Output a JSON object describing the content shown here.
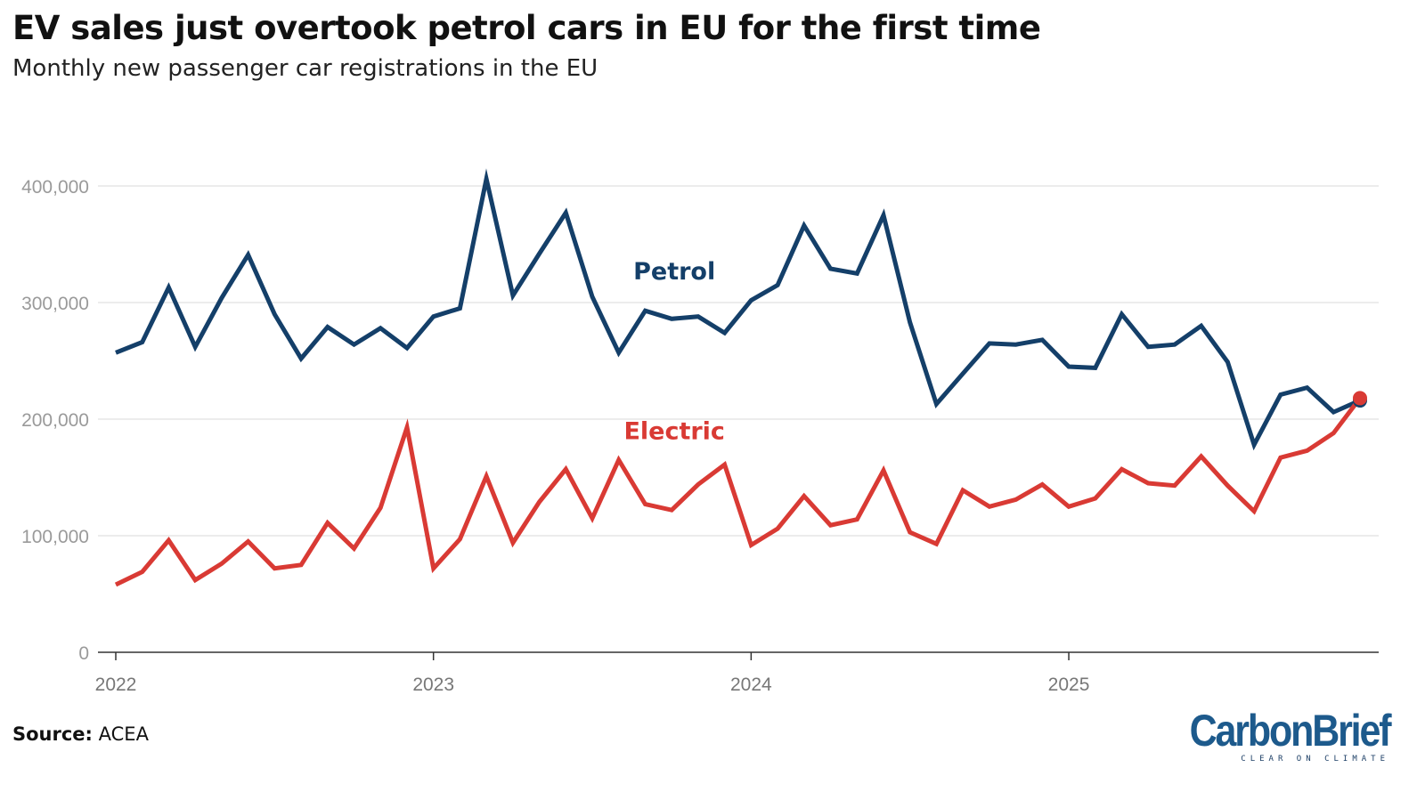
{
  "title": "EV sales just overtook petrol cars in EU for the first time",
  "subtitle": "Monthly new passenger car registrations in the EU",
  "source_label": "Source:",
  "source_value": "ACEA",
  "logo": {
    "main": "CarbonBrief",
    "tagline": "CLEAR ON CLIMATE"
  },
  "colors": {
    "petrol": "#143f69",
    "electric": "#d93a34",
    "grid": "#e6e6e6",
    "axis_text": "#9a9a9a",
    "year_text": "#777777"
  },
  "chart_data": {
    "type": "line",
    "title": "EV sales just overtook petrol cars in EU for the first time",
    "subtitle": "Monthly new passenger car registrations in the EU",
    "xlabel": "",
    "ylabel": "",
    "x_range": [
      "2022-01",
      "2025-12"
    ],
    "ylim": [
      0,
      400000
    ],
    "y_ticks": [
      0,
      100000,
      200000,
      300000,
      400000
    ],
    "y_tick_labels": [
      "0",
      "100,000",
      "200,000",
      "300,000",
      "400,000"
    ],
    "x_ticks": [
      "2022-01",
      "2023-01",
      "2024-01",
      "2025-01"
    ],
    "x_tick_labels": [
      "2022",
      "2023",
      "2024",
      "2025"
    ],
    "grid": true,
    "x": [
      "2022-01",
      "2022-02",
      "2022-03",
      "2022-04",
      "2022-05",
      "2022-06",
      "2022-07",
      "2022-08",
      "2022-09",
      "2022-10",
      "2022-11",
      "2022-12",
      "2023-01",
      "2023-02",
      "2023-03",
      "2023-04",
      "2023-05",
      "2023-06",
      "2023-07",
      "2023-08",
      "2023-09",
      "2023-10",
      "2023-11",
      "2023-12",
      "2024-01",
      "2024-02",
      "2024-03",
      "2024-04",
      "2024-05",
      "2024-06",
      "2024-07",
      "2024-08",
      "2024-09",
      "2024-10",
      "2024-11",
      "2024-12",
      "2025-01",
      "2025-02",
      "2025-03",
      "2025-04",
      "2025-05",
      "2025-06",
      "2025-07",
      "2025-08",
      "2025-09",
      "2025-10",
      "2025-11",
      "2025-12"
    ],
    "series": [
      {
        "name": "Petrol",
        "color": "#143f69",
        "values": [
          257000,
          266000,
          313000,
          262000,
          304000,
          341000,
          290000,
          252000,
          279000,
          264000,
          278000,
          261000,
          288000,
          295000,
          406000,
          306000,
          342000,
          377000,
          305000,
          257000,
          293000,
          286000,
          288000,
          274000,
          302000,
          315000,
          366000,
          329000,
          325000,
          375000,
          283000,
          213000,
          239000,
          265000,
          264000,
          268000,
          245000,
          244000,
          290000,
          262000,
          264000,
          280000,
          249000,
          178000,
          221000,
          227000,
          206000,
          216000
        ]
      },
      {
        "name": "Electric",
        "color": "#d93a34",
        "values": [
          58000,
          69000,
          96000,
          62000,
          76000,
          95000,
          72000,
          75000,
          111000,
          89000,
          124000,
          193000,
          72000,
          97000,
          151000,
          94000,
          129000,
          157000,
          115000,
          165000,
          127000,
          122000,
          144000,
          161000,
          92000,
          106000,
          134000,
          109000,
          114000,
          156000,
          103000,
          93000,
          139000,
          125000,
          131000,
          144000,
          125000,
          132000,
          157000,
          145000,
          143000,
          168000,
          143000,
          121000,
          167000,
          173000,
          188000,
          218000
        ]
      }
    ],
    "annotations": [
      {
        "text": "Petrol",
        "series": "Petrol",
        "x": "2023-10",
        "y": 320000
      },
      {
        "text": "Electric",
        "series": "Electric",
        "x": "2023-10",
        "y": 183000
      }
    ]
  }
}
